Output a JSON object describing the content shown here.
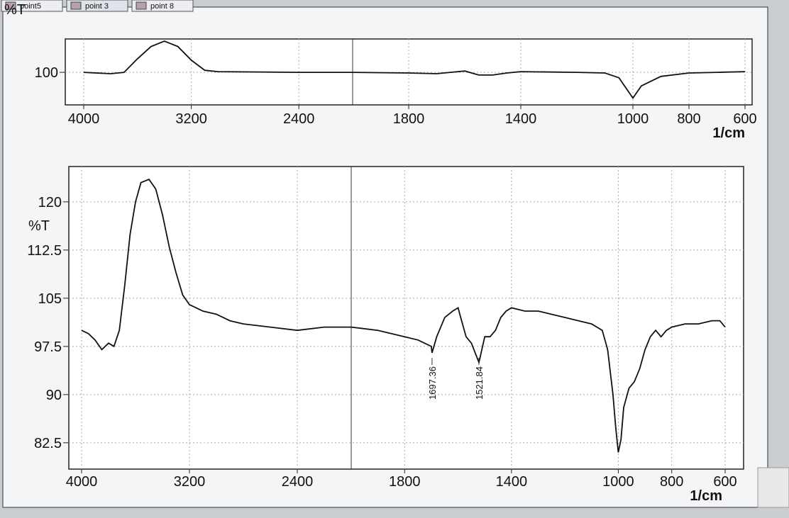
{
  "tabs": [
    "point5",
    "point 3",
    "point 8"
  ],
  "chart_data": [
    {
      "type": "line",
      "ylabel": "%T",
      "xlabel": "1/cm",
      "color": "#111111",
      "grid": true,
      "xlim": [
        4000,
        600
      ],
      "x_break": 2000,
      "ylim": [
        76,
        124.6
      ],
      "xticks": [
        4000,
        3200,
        2400,
        1800,
        1400,
        1000,
        800,
        600
      ],
      "yticks": [
        100
      ],
      "x": [
        4000,
        3800,
        3700,
        3600,
        3500,
        3400,
        3300,
        3200,
        3100,
        3000,
        2400,
        2000,
        1800,
        1700,
        1600,
        1550,
        1500,
        1450,
        1400,
        1200,
        1100,
        1050,
        1000,
        970,
        900,
        800,
        700,
        600
      ],
      "values": [
        100,
        99,
        100,
        110,
        119,
        123,
        119,
        109,
        101.5,
        100.5,
        100,
        100,
        99.5,
        99,
        101,
        98,
        98,
        99.5,
        100.5,
        100,
        99.5,
        96,
        81,
        90,
        97,
        99.5,
        100,
        100.5
      ]
    },
    {
      "type": "line",
      "ylabel": "%T",
      "xlabel": "1/cm",
      "color": "#111111",
      "grid": true,
      "xlim": [
        4000,
        600
      ],
      "x_break": 2000,
      "ylim": [
        78.4,
        125.5
      ],
      "xticks": [
        4000,
        3200,
        2400,
        1800,
        1400,
        1000,
        800,
        600
      ],
      "yticks": [
        82.5,
        90,
        97.5,
        105,
        112.5,
        120
      ],
      "x": [
        4000,
        3950,
        3900,
        3850,
        3800,
        3760,
        3720,
        3680,
        3640,
        3600,
        3560,
        3500,
        3450,
        3400,
        3350,
        3300,
        3250,
        3200,
        3150,
        3100,
        3000,
        2900,
        2800,
        2600,
        2400,
        2200,
        2000,
        1900,
        1850,
        1800,
        1750,
        1700,
        1697.36,
        1680,
        1650,
        1620,
        1600,
        1590,
        1570,
        1550,
        1521.84,
        1500,
        1480,
        1460,
        1440,
        1420,
        1400,
        1350,
        1300,
        1250,
        1200,
        1150,
        1100,
        1060,
        1040,
        1020,
        1010,
        1000,
        990,
        980,
        960,
        940,
        920,
        900,
        880,
        860,
        840,
        820,
        800,
        750,
        700,
        650,
        620,
        600
      ],
      "values": [
        100,
        99.5,
        98.5,
        97,
        98,
        97.5,
        100,
        107,
        115,
        120,
        123,
        123.5,
        122,
        118,
        113,
        109,
        105.5,
        104,
        103.5,
        103,
        102.5,
        101.5,
        101,
        100.5,
        100,
        100.5,
        100.5,
        100,
        99.5,
        99,
        98.5,
        97.5,
        96.5,
        99,
        102,
        103,
        103.5,
        102,
        99,
        98,
        95,
        99,
        99,
        100,
        102,
        103,
        103.5,
        103,
        103,
        102.5,
        102,
        101.5,
        101,
        100,
        97,
        90,
        85,
        81,
        83,
        88,
        91,
        92,
        94,
        97,
        99,
        100,
        99,
        100,
        100.5,
        101,
        101,
        101.5,
        101.5,
        100.5
      ],
      "annotations": [
        1697.36,
        1521.84
      ]
    }
  ]
}
